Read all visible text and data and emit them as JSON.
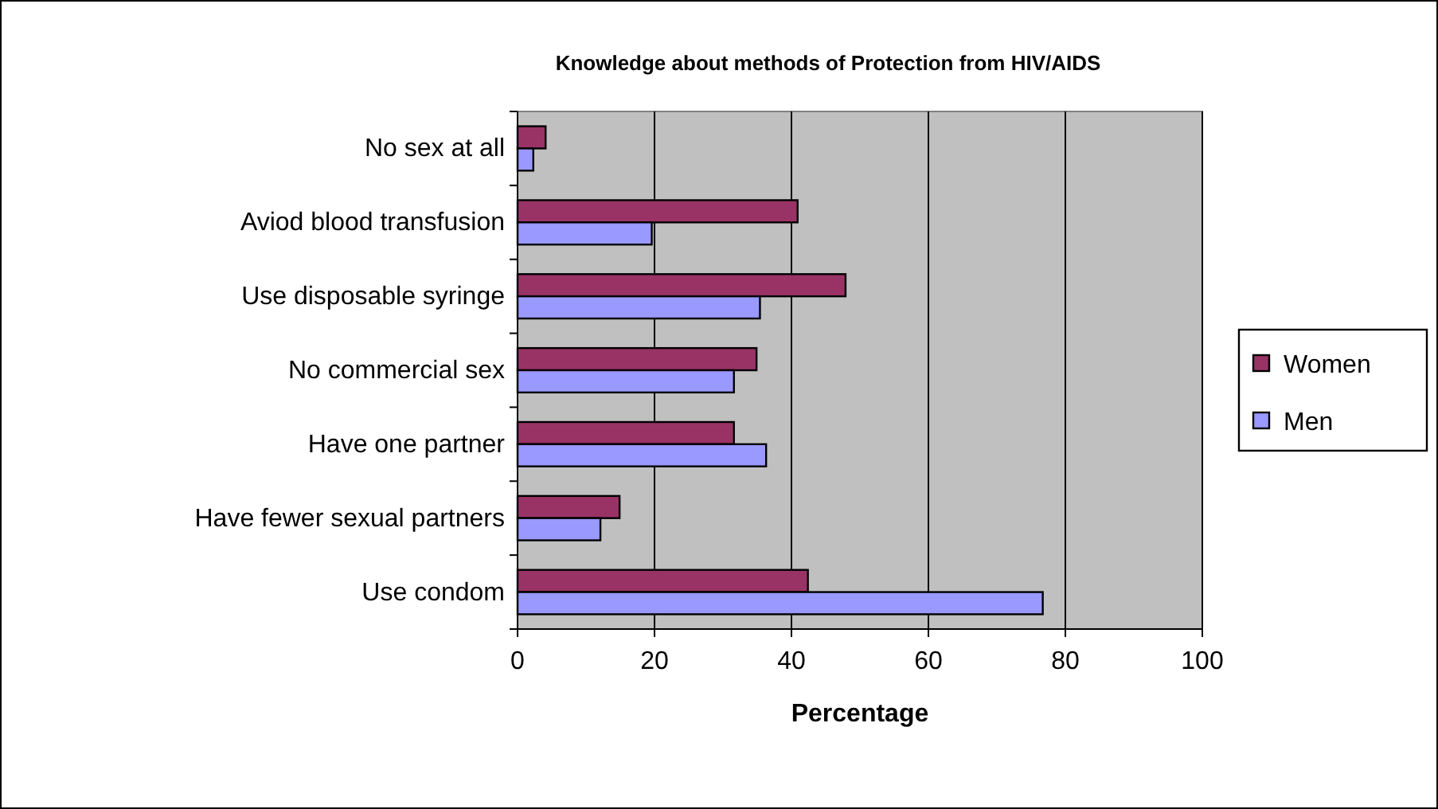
{
  "chart_data": {
    "type": "bar",
    "orientation": "horizontal",
    "title": "Knowledge about methods of Protection from HIV/AIDS",
    "xlabel": "Percentage",
    "categories": [
      "No sex at all",
      "Aviod blood transfusion",
      "Use disposable syringe",
      "No commercial sex",
      "Have one partner",
      "Have fewer sexual partners",
      "Use condom"
    ],
    "series": [
      {
        "name": "Women",
        "color": "#993366",
        "values": [
          4.1,
          40.9,
          47.9,
          34.9,
          31.6,
          14.9,
          42.4
        ]
      },
      {
        "name": "Men",
        "color": "#9999ff",
        "values": [
          2.3,
          19.6,
          35.4,
          31.6,
          36.3,
          12.1,
          76.7
        ]
      }
    ],
    "xlim": [
      0,
      100
    ],
    "xticks": [
      0,
      20,
      40,
      60,
      80,
      100
    ],
    "grid": "x",
    "legend": "right"
  }
}
